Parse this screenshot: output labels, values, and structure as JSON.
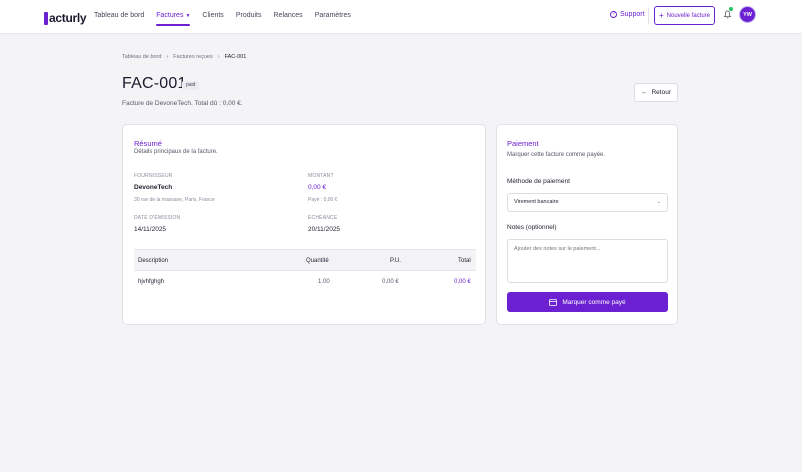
{
  "header": {
    "logo_text": "acturly",
    "nav": [
      {
        "label": "Tableau de bord"
      },
      {
        "label": "Factures"
      },
      {
        "label": "Clients"
      },
      {
        "label": "Produits"
      },
      {
        "label": "Relances"
      },
      {
        "label": "Paramètres"
      }
    ],
    "support_label": "Support",
    "new_invoice_label": "Nouvelle facture",
    "avatar_initials": "YW"
  },
  "breadcrumb": [
    "Tableau de bord",
    "Factures reçues",
    "FAC-001"
  ],
  "page": {
    "title": "FAC-001",
    "status_badge": "paid",
    "subtitle": "Facture de DevoneTech. Total dû : 0,00 €.",
    "back_label": "Retour"
  },
  "summary": {
    "title": "Résumé",
    "subtitle": "Détails principaux de la facture.",
    "supplier_label": "FOURNISSEUR",
    "supplier_name": "DevoneTech",
    "supplier_address": "30 rue de la massane, Paris, France",
    "amount_label": "MONTANT",
    "amount": "0,00 €",
    "paid": "Payé : 0,00 €",
    "issue_label": "DATE D'ÉMISSION",
    "issue_date": "14/11/2025",
    "due_label": "ÉCHÉANCE",
    "due_date": "20/11/2025",
    "table": {
      "headers": {
        "description": "Description",
        "quantity": "Quantité",
        "unit_price": "P.U.",
        "total": "Total"
      },
      "rows": [
        {
          "description": "hjvhfghgh",
          "quantity": "1.00",
          "unit_price": "0,00 €",
          "total": "0,00 €"
        }
      ]
    }
  },
  "payment": {
    "title": "Paiement",
    "subtitle": "Marquer cette facture comme payée.",
    "method_label": "Méthode de paiement",
    "method_value": "Virement bancaire",
    "notes_label": "Notes (optionnel)",
    "notes_placeholder": "Ajouter des notes sur le paiement...",
    "submit_label": "Marquer comme payé"
  },
  "colors": {
    "accent": "#6b21d1",
    "background": "#f4f4f6"
  }
}
